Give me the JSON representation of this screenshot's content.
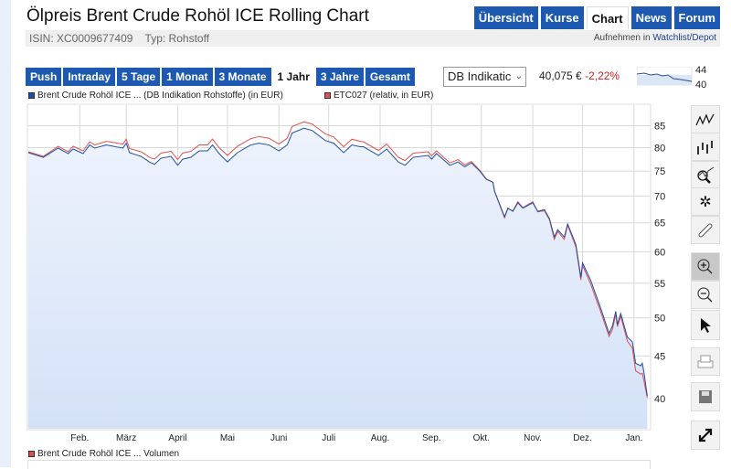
{
  "header": {
    "title": "Ölpreis Brent Crude Rohöl ICE Rolling Chart",
    "tabs": [
      {
        "label": "Übersicht"
      },
      {
        "label": "Kurse"
      },
      {
        "label": "Chart",
        "active": true
      },
      {
        "label": "News"
      },
      {
        "label": "Forum"
      }
    ],
    "isin": "ISIN: XC0009677409",
    "type": "Typ: Rohstoff",
    "watch_prefix": "Aufnehmen in ",
    "watch_link": "Watchlist/Depot"
  },
  "periods": [
    {
      "label": "Push"
    },
    {
      "label": "Intraday"
    },
    {
      "label": "5 Tage"
    },
    {
      "label": "1 Monat"
    },
    {
      "label": "3 Monate"
    },
    {
      "label": "1 Jahr",
      "active": true
    },
    {
      "label": "3 Jahre"
    },
    {
      "label": "Gesamt"
    }
  ],
  "exchange_select": "DB Indikatic",
  "quote": {
    "price": "40,075 €",
    "change": "-2,22%"
  },
  "mini_chart": {
    "labels": [
      "44",
      "40"
    ]
  },
  "legend": [
    {
      "label": "Brent Crude Rohöl ICE ... (DB Indikation Rohstoffe) (in EUR)",
      "color": "#1e4fa0"
    },
    {
      "label": "ETC027 (relativ, in EUR)",
      "color": "#e05050"
    }
  ],
  "volume_legend": {
    "label": "Brent Crude Rohöl ICE ... Volumen",
    "color": "#d05050"
  },
  "toolbar": [
    "line-chart-icon",
    "ohlc-chart-icon",
    "indicator-search-icon",
    "settings-gears-icon",
    "link-icon",
    "zoom-in-icon",
    "zoom-out-icon",
    "pointer-icon",
    "print-icon",
    "save-icon",
    "fullscreen-icon"
  ],
  "chart_data": {
    "type": "area",
    "y_scale": "log",
    "ylim": [
      38,
      87
    ],
    "yticks": [
      85,
      80,
      75,
      70,
      65,
      60,
      55,
      50,
      45,
      40
    ],
    "xlim": [
      "2014-01-01",
      "2015-01-11"
    ],
    "xticks": [
      {
        "date": "2014-02-01",
        "label": "Feb."
      },
      {
        "date": "2014-03-01",
        "label": "März"
      },
      {
        "date": "2014-04-01",
        "label": "April"
      },
      {
        "date": "2014-05-01",
        "label": "Mai"
      },
      {
        "date": "2014-06-01",
        "label": "Juni"
      },
      {
        "date": "2014-07-01",
        "label": "Juli"
      },
      {
        "date": "2014-08-01",
        "label": "Aug."
      },
      {
        "date": "2014-09-01",
        "label": "Sep."
      },
      {
        "date": "2014-10-01",
        "label": "Okt."
      },
      {
        "date": "2014-11-01",
        "label": "Nov."
      },
      {
        "date": "2014-12-01",
        "label": "Dez."
      },
      {
        "date": "2015-01-01",
        "label": "Jan."
      }
    ],
    "grid": true,
    "x": [
      "2014-01-01",
      "2014-01-10",
      "2014-01-19",
      "2014-01-25",
      "2014-01-28",
      "2014-02-03",
      "2014-02-07",
      "2014-02-10",
      "2014-02-17",
      "2014-02-27",
      "2014-03-01",
      "2014-03-03",
      "2014-03-10",
      "2014-03-15",
      "2014-03-18",
      "2014-03-22",
      "2014-03-28",
      "2014-04-01",
      "2014-04-04",
      "2014-04-09",
      "2014-04-14",
      "2014-04-19",
      "2014-04-22",
      "2014-04-26",
      "2014-05-01",
      "2014-05-07",
      "2014-05-15",
      "2014-05-20",
      "2014-05-26",
      "2014-06-01",
      "2014-06-06",
      "2014-06-09",
      "2014-06-16",
      "2014-06-21",
      "2014-06-29",
      "2014-07-04",
      "2014-07-10",
      "2014-07-15",
      "2014-07-20",
      "2014-07-22",
      "2014-07-31",
      "2014-08-05",
      "2014-08-12",
      "2014-08-16",
      "2014-08-21",
      "2014-08-30",
      "2014-09-01",
      "2014-09-04",
      "2014-09-12",
      "2014-09-17",
      "2014-09-21",
      "2014-09-25",
      "2014-09-30",
      "2014-10-04",
      "2014-10-08",
      "2014-10-09",
      "2014-10-15",
      "2014-10-17",
      "2014-10-20",
      "2014-10-23",
      "2014-10-26",
      "2014-11-01",
      "2014-11-04",
      "2014-11-08",
      "2014-11-11",
      "2014-11-14",
      "2014-11-16",
      "2014-11-20",
      "2014-11-22",
      "2014-11-27",
      "2014-11-30",
      "2014-12-01",
      "2014-12-06",
      "2014-12-12",
      "2014-12-17",
      "2014-12-19",
      "2014-12-21",
      "2014-12-22",
      "2014-12-24",
      "2014-12-28",
      "2014-12-31",
      "2015-01-02",
      "2015-01-05",
      "2015-01-06",
      "2015-01-07",
      "2015-01-09"
    ],
    "series": [
      {
        "name": "Brent Crude Rohöl ICE ... (DB Indikation Rohstoffe) (in EUR)",
        "color": "#1e4fa0",
        "values": [
          78.9,
          77.9,
          79.9,
          78.7,
          79.7,
          78.7,
          80.6,
          79.9,
          80.6,
          79.9,
          81.0,
          78.9,
          78.1,
          76.9,
          76.4,
          77.7,
          78.1,
          76.2,
          77.5,
          77.9,
          79.3,
          79.3,
          80.6,
          78.7,
          76.9,
          78.9,
          80.6,
          81.0,
          80.6,
          79.3,
          80.6,
          83.3,
          84.4,
          83.9,
          81.6,
          81.0,
          78.9,
          80.6,
          80.2,
          80.2,
          78.3,
          79.7,
          76.9,
          76.2,
          77.9,
          78.3,
          77.5,
          78.7,
          76.2,
          76.9,
          75.9,
          76.7,
          75.0,
          73.3,
          72.7,
          70.9,
          66.1,
          67.7,
          67.1,
          68.7,
          67.7,
          68.7,
          67.1,
          67.4,
          65.8,
          62.5,
          63.8,
          62.5,
          64.8,
          61.2,
          55.9,
          58.2,
          55.4,
          51.3,
          47.9,
          48.9,
          50.9,
          49.1,
          50.6,
          47.4,
          46.8,
          44.1,
          43.8,
          44.1,
          43.0,
          40.3
        ]
      },
      {
        "name": "ETC027 (relativ, in EUR)",
        "color": "#e05050",
        "values": [
          79.1,
          78.1,
          80.3,
          79.1,
          80.3,
          79.3,
          81.3,
          80.6,
          81.4,
          80.8,
          81.9,
          79.8,
          79.1,
          77.9,
          77.5,
          78.8,
          79.2,
          77.4,
          78.8,
          79.2,
          80.6,
          80.6,
          81.9,
          80.0,
          78.3,
          80.3,
          82.0,
          82.5,
          82.1,
          80.8,
          82.1,
          84.8,
          85.9,
          85.4,
          83.1,
          82.4,
          80.2,
          81.9,
          81.4,
          81.3,
          79.4,
          80.8,
          77.9,
          77.2,
          78.8,
          79.1,
          78.2,
          79.3,
          76.7,
          77.4,
          76.3,
          77.0,
          75.2,
          73.4,
          72.7,
          70.9,
          65.9,
          67.6,
          67.2,
          68.9,
          67.8,
          68.9,
          67.0,
          67.2,
          65.6,
          62.1,
          63.5,
          62.1,
          64.6,
          60.8,
          55.5,
          57.8,
          54.8,
          50.8,
          47.5,
          48.4,
          50.5,
          48.8,
          50.2,
          46.9,
          46.0,
          43.2,
          42.8,
          42.9,
          42.0,
          40.1
        ]
      }
    ]
  }
}
